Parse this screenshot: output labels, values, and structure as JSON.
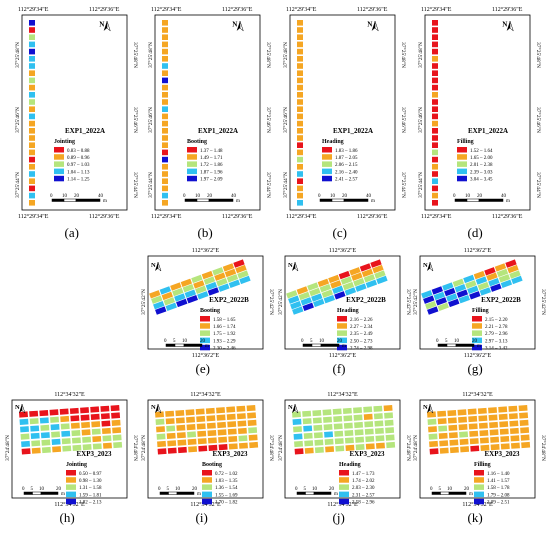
{
  "colors": {
    "c1": "#e8141c",
    "c2": "#f5a623",
    "c3": "#b5e57d",
    "c4": "#30c0f0",
    "c5": "#1010d0",
    "frame": "#000000",
    "background": "#ffffff"
  },
  "panels": [
    {
      "id": "a",
      "caption": "(a)",
      "top_lon": "112°29'34\"E",
      "top_lon2": "112°29'36\"E",
      "bottom_lon": "112°29'34\"E",
      "bottom_lon2": "112°29'36\"E",
      "left_lats": [
        "37°25'48\"N",
        "37°25'46\"N",
        "37°25'44\"N"
      ],
      "right_lats": [
        "37°25'48\"N",
        "37°25'46\"N",
        "37°25'44\"N"
      ],
      "legend_title": "EXP1_2022A",
      "legend_subtitle": "Jointing",
      "legend_ranges": [
        "0.83 – 0.88",
        "0.89 – 0.96",
        "0.97 – 1.03",
        "1.04 – 1.13",
        "1.14 – 1.25"
      ],
      "scale_labels": [
        "0",
        "10",
        "20",
        "40"
      ],
      "scale_unit": "m",
      "north": "N",
      "plots": [
        "c5",
        "c1",
        "c3",
        "c4",
        "c5",
        "c4",
        "c4",
        "c2",
        "c3",
        "c2",
        "c4",
        "c3",
        "c2",
        "c4",
        "c2",
        "c2",
        "c2",
        "c2",
        "c2",
        "c1",
        "c2",
        "c4",
        "c2",
        "c1",
        "c4",
        "c2"
      ]
    },
    {
      "id": "b",
      "caption": "(b)",
      "top_lon": "112°29'34\"E",
      "top_lon2": "112°29'36\"E",
      "bottom_lon": "112°29'34\"E",
      "bottom_lon2": "112°29'36\"E",
      "left_lats": [
        "37°25'48\"N",
        "37°25'46\"N",
        "37°25'44\"N"
      ],
      "right_lats": [
        "37°25'48\"N",
        "37°25'46\"N",
        "37°25'44\"N"
      ],
      "legend_title": "EXP1_2022A",
      "legend_subtitle": "Booting",
      "legend_ranges": [
        "1.37 – 1.48",
        "1.49 – 1.71",
        "1.72 – 1.86",
        "1.87 – 1.96",
        "1.97 – 2.09"
      ],
      "scale_labels": [
        "0",
        "10",
        "20",
        "40"
      ],
      "scale_unit": "m",
      "north": "N",
      "plots": [
        "c2",
        "c2",
        "c2",
        "c2",
        "c2",
        "c2",
        "c4",
        "c2",
        "c5",
        "c2",
        "c2",
        "c2",
        "c4",
        "c2",
        "c2",
        "c2",
        "c2",
        "c2",
        "c1",
        "c5",
        "c2",
        "c2",
        "c2",
        "c2",
        "c4",
        "c2"
      ]
    },
    {
      "id": "c",
      "caption": "(c)",
      "top_lon": "112°29'34\"E",
      "top_lon2": "112°29'36\"E",
      "bottom_lon": "112°29'34\"E",
      "bottom_lon2": "112°29'36\"E",
      "left_lats": [
        "37°25'48\"N",
        "37°25'46\"N",
        "37°25'44\"N"
      ],
      "right_lats": [
        "37°25'48\"N",
        "37°25'46\"N",
        "37°25'44\"N"
      ],
      "legend_title": "EXP1_2022A",
      "legend_subtitle": "Heading",
      "legend_ranges": [
        "1.83 – 1.86",
        "1.87 – 2.05",
        "2.06 – 2.15",
        "2.16 – 2.40",
        "2.41 – 2.57"
      ],
      "scale_labels": [
        "0",
        "10",
        "20",
        "40"
      ],
      "scale_unit": "m",
      "north": "N",
      "plots": [
        "c2",
        "c2",
        "c2",
        "c2",
        "c2",
        "c2",
        "c2",
        "c2",
        "c2",
        "c2",
        "c2",
        "c2",
        "c2",
        "c2",
        "c2",
        "c2",
        "c2",
        "c1",
        "c2",
        "c3",
        "c2",
        "c4",
        "c1",
        "c2",
        "c2",
        "c4"
      ]
    },
    {
      "id": "d",
      "caption": "(d)",
      "top_lon": "112°29'34\"E",
      "top_lon2": "112°29'36\"E",
      "bottom_lon": "112°29'34\"E",
      "bottom_lon2": "112°29'36\"E",
      "left_lats": [
        "37°25'48\"N",
        "37°25'46\"N",
        "37°25'44\"N"
      ],
      "right_lats": [
        "37°25'48\"N",
        "37°25'46\"N",
        "37°25'44\"N"
      ],
      "legend_title": "EXP1_2022A",
      "legend_subtitle": "Filling",
      "legend_ranges": [
        "1.52 – 1.64",
        "1.65 – 2.00",
        "2.01 – 2.38",
        "2.39 – 3.03",
        "3.04 – 3.45"
      ],
      "scale_labels": [
        "0",
        "10",
        "20",
        "40"
      ],
      "scale_unit": "m",
      "north": "N",
      "plots": [
        "c1",
        "c1",
        "c1",
        "c1",
        "c1",
        "c2",
        "c1",
        "c1",
        "c1",
        "c1",
        "c2",
        "c1",
        "c1",
        "c1",
        "c2",
        "c1",
        "c1",
        "c1",
        "c3",
        "c1",
        "c2",
        "c1",
        "c4",
        "c1",
        "c2",
        "c1"
      ]
    },
    {
      "id": "e",
      "caption": "(e)",
      "top_lon": "112°36'2\"E",
      "bottom_lon": "112°36'2\"E",
      "left_lat": "37°25'42\"N",
      "right_lat": "37°25'42\"N",
      "legend_title": "EXP2_2022B",
      "legend_subtitle": "Booting",
      "legend_ranges": [
        "1.58 – 1.65",
        "1.66 – 1.74",
        "1.75 – 1.92",
        "1.93 – 2.29",
        "2.30 – 2.46"
      ],
      "scale_labels": [
        "0",
        "5",
        "10",
        "20"
      ],
      "scale_unit": "m",
      "north": "N",
      "plots": [
        [
          "c2",
          "c4",
          "c2",
          "c2",
          "c3",
          "c2",
          "c3",
          "c2",
          "c1"
        ],
        [
          "c3",
          "c2",
          "c3",
          "c3",
          "c2",
          "c3",
          "c2",
          "c2",
          "c2"
        ],
        [
          "c4",
          "c3",
          "c4",
          "c4",
          "c3",
          "c4",
          "c3",
          "c3",
          "c3"
        ],
        [
          "c5",
          "c4",
          "c5",
          "c5",
          "c4",
          "c5",
          "c4",
          "c4",
          "c4"
        ]
      ]
    },
    {
      "id": "f",
      "caption": "(f)",
      "top_lon": "112°36'2\"E",
      "bottom_lon": "112°36'2\"E",
      "left_lat": "37°25'42\"N",
      "right_lat": "37°25'42\"N",
      "legend_title": "EXP2_2022B",
      "legend_subtitle": "Heading",
      "legend_ranges": [
        "2.16 – 2.26",
        "2.27 – 2.34",
        "2.35 – 2.49",
        "2.50 – 2.73",
        "2.74 – 2.98"
      ],
      "scale_labels": [
        "0",
        "5",
        "10",
        "20"
      ],
      "scale_unit": "m",
      "north": "N",
      "plots": [
        [
          "c3",
          "c2",
          "c3",
          "c2",
          "c2",
          "c1",
          "c2",
          "c1",
          "c1"
        ],
        [
          "c4",
          "c3",
          "c3",
          "c3",
          "c2",
          "c3",
          "c2",
          "c2",
          "c2"
        ],
        [
          "c4",
          "c4",
          "c4",
          "c3",
          "c4",
          "c3",
          "c3",
          "c3",
          "c3"
        ],
        [
          "c4",
          "c5",
          "c4",
          "c4",
          "c5",
          "c4",
          "c4",
          "c4",
          "c4"
        ]
      ]
    },
    {
      "id": "g",
      "caption": "(g)",
      "top_lon": "112°36'2\"E",
      "bottom_lon": "112°36'2\"E",
      "left_lat": "37°25'42\"N",
      "right_lat": "37°25'42\"N",
      "legend_title": "EXP2_2022B",
      "legend_subtitle": "Filling",
      "legend_ranges": [
        "2.15 – 2.20",
        "2.21 – 2.78",
        "2.79 – 2.96",
        "2.97 – 3.13",
        "3.14 – 3.42"
      ],
      "scale_labels": [
        "0",
        "5",
        "10",
        "20"
      ],
      "scale_unit": "m",
      "north": "N",
      "plots": [
        [
          "c4",
          "c5",
          "c4",
          "c3",
          "c4",
          "c2",
          "c1",
          "c2",
          "c1"
        ],
        [
          "c5",
          "c4",
          "c5",
          "c4",
          "c3",
          "c4",
          "c2",
          "c3",
          "c2"
        ],
        [
          "c3",
          "c5",
          "c4",
          "c5",
          "c4",
          "c3",
          "c4",
          "c3",
          "c3"
        ],
        [
          "c5",
          "c3",
          "c5",
          "c4",
          "c5",
          "c4",
          "c5",
          "c4",
          "c4"
        ]
      ]
    },
    {
      "id": "h",
      "caption": "(h)",
      "top_lon": "112°34'32\"E",
      "bottom_lon": "112°34'32\"E",
      "left_lat": "37°24'48\"N",
      "right_lat": "37°24'48\"N",
      "legend_title": "EXP3_2023",
      "legend_subtitle": "Jointing",
      "legend_ranges": [
        "0.50 – 0.97",
        "0.98 – 1.30",
        "1.31 – 1.58",
        "1.59 – 1.81",
        "1.82 – 2.13"
      ],
      "scale_labels": [
        "0",
        "5",
        "10",
        "20"
      ],
      "scale_unit": "m",
      "north": "N",
      "plots": [
        [
          "c1",
          "c1",
          "c1",
          "c1",
          "c1",
          "c1",
          "c1",
          "c1",
          "c1",
          "c1"
        ],
        [
          "c4",
          "c3",
          "c4",
          "c3",
          "c2",
          "c1",
          "c1",
          "c1",
          "c1",
          "c1"
        ],
        [
          "c4",
          "c4",
          "c3",
          "c4",
          "c3",
          "c2",
          "c2",
          "c2",
          "c1",
          "c2"
        ],
        [
          "c3",
          "c4",
          "c4",
          "c3",
          "c4",
          "c3",
          "c2",
          "c3",
          "c2",
          "c2"
        ],
        [
          "c4",
          "c3",
          "c3",
          "c4",
          "c3",
          "c3",
          "c3",
          "c2",
          "c3",
          "c3"
        ],
        [
          "c1",
          "c2",
          "c3",
          "c2",
          "c3",
          "c3",
          "c3",
          "c3",
          "c2",
          "c3"
        ]
      ]
    },
    {
      "id": "i",
      "caption": "(i)",
      "top_lon": "112°34'32\"E",
      "bottom_lon": "112°34'32\"E",
      "left_lat": "37°24'48\"N",
      "right_lat": "37°24'48\"N",
      "legend_title": "EXP3_2023",
      "legend_subtitle": "Booting",
      "legend_ranges": [
        "0.72 – 1.02",
        "1.03 – 1.35",
        "1.36 – 1.54",
        "1.55 – 1.69",
        "1.70 – 1.82"
      ],
      "scale_labels": [
        "0",
        "5",
        "10",
        "20"
      ],
      "scale_unit": "m",
      "north": "N",
      "plots": [
        [
          "c2",
          "c2",
          "c2",
          "c2",
          "c2",
          "c2",
          "c2",
          "c2",
          "c2",
          "c2"
        ],
        [
          "c3",
          "c2",
          "c2",
          "c2",
          "c2",
          "c2",
          "c2",
          "c2",
          "c2",
          "c2"
        ],
        [
          "c2",
          "c3",
          "c2",
          "c2",
          "c2",
          "c2",
          "c2",
          "c2",
          "c2",
          "c2"
        ],
        [
          "c3",
          "c2",
          "c2",
          "c3",
          "c2",
          "c2",
          "c2",
          "c2",
          "c2",
          "c3"
        ],
        [
          "c2",
          "c2",
          "c2",
          "c2",
          "c2",
          "c2",
          "c2",
          "c2",
          "c3",
          "c2"
        ],
        [
          "c1",
          "c1",
          "c1",
          "c2",
          "c1",
          "c1",
          "c1",
          "c2",
          "c2",
          "c2"
        ]
      ]
    },
    {
      "id": "j",
      "caption": "(j)",
      "top_lon": "112°34'32\"E",
      "bottom_lon": "112°34'32\"E",
      "left_lat": "37°24'48\"N",
      "right_lat": "37°24'48\"N",
      "legend_title": "EXP3_2023",
      "legend_subtitle": "Heading",
      "legend_ranges": [
        "1.47 – 1.73",
        "1.74 – 2.02",
        "2.03 – 2.30",
        "2.31 – 2.57",
        "2.58 – 2.96"
      ],
      "scale_labels": [
        "0",
        "5",
        "10",
        "20"
      ],
      "scale_unit": "m",
      "north": "N",
      "plots": [
        [
          "c3",
          "c3",
          "c3",
          "c3",
          "c3",
          "c3",
          "c3",
          "c3",
          "c3",
          "c2"
        ],
        [
          "c4",
          "c3",
          "c3",
          "c3",
          "c3",
          "c3",
          "c3",
          "c2",
          "c3",
          "c3"
        ],
        [
          "c3",
          "c4",
          "c3",
          "c3",
          "c3",
          "c3",
          "c3",
          "c3",
          "c3",
          "c3"
        ],
        [
          "c4",
          "c3",
          "c3",
          "c4",
          "c3",
          "c3",
          "c3",
          "c3",
          "c3",
          "c3"
        ],
        [
          "c3",
          "c3",
          "c3",
          "c3",
          "c3",
          "c3",
          "c3",
          "c3",
          "c3",
          "c3"
        ],
        [
          "c1",
          "c2",
          "c3",
          "c2",
          "c3",
          "c2",
          "c3",
          "c2",
          "c2",
          "c3"
        ]
      ]
    },
    {
      "id": "k",
      "caption": "(k)",
      "top_lon": "112°34'32\"E",
      "bottom_lon": "112°34'32\"E",
      "left_lat": "37°24'48\"N",
      "right_lat": "37°24'48\"N",
      "legend_title": "EXP3_2023",
      "legend_subtitle": "Filling",
      "legend_ranges": [
        "1.16 – 1.40",
        "1.41 – 1.57",
        "1.58 – 1.78",
        "1.79 – 2.08",
        "2.09 – 2.51"
      ],
      "scale_labels": [
        "0",
        "5",
        "10",
        "20"
      ],
      "scale_unit": "m",
      "north": "N",
      "plots": [
        [
          "c2",
          "c2",
          "c2",
          "c2",
          "c2",
          "c2",
          "c2",
          "c2",
          "c2",
          "c2"
        ],
        [
          "c3",
          "c2",
          "c2",
          "c2",
          "c2",
          "c2",
          "c2",
          "c2",
          "c2",
          "c2"
        ],
        [
          "c2",
          "c3",
          "c2",
          "c2",
          "c2",
          "c2",
          "c2",
          "c2",
          "c2",
          "c2"
        ],
        [
          "c3",
          "c2",
          "c2",
          "c3",
          "c2",
          "c2",
          "c2",
          "c2",
          "c2",
          "c2"
        ],
        [
          "c2",
          "c2",
          "c2",
          "c2",
          "c2",
          "c2",
          "c2",
          "c2",
          "c2",
          "c2"
        ],
        [
          "c1",
          "c2",
          "c2",
          "c2",
          "c1",
          "c2",
          "c2",
          "c2",
          "c2",
          "c2"
        ]
      ]
    }
  ]
}
